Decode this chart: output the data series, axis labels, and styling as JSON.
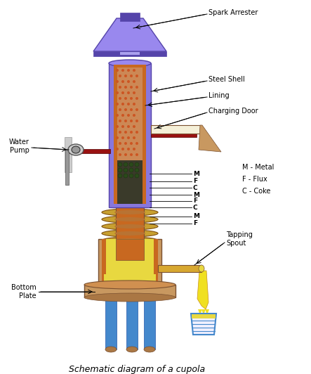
{
  "title": "Schematic diagram of a cupola",
  "bg_color": "#ffffff",
  "labels": {
    "spark_arrester": "Spark Arrester",
    "steel_shell": "Steel Shell",
    "lining": "Lining",
    "charging_door": "Charging Door",
    "water_pump": "Water\nPump",
    "M_metal": "M - Metal",
    "F_flux": "F - Flux",
    "C_coke": "C - Coke",
    "tapping_spout": "Tapping\nSpout",
    "bottom_plate": "Bottom\nPlate"
  },
  "colors": {
    "purple_shell": "#8877dd",
    "purple_mid": "#9988ee",
    "purple_light": "#aaa0ee",
    "purple_dark": "#5544aa",
    "orange_lining": "#c86820",
    "brick_bg": "#cc8855",
    "brick_dots": "#cc5522",
    "dark_material": "#3a3a2a",
    "green_dark": "#2a4a1a",
    "yellow_metal": "#e8d840",
    "yellow_bright": "#f0e020",
    "gold": "#c89020",
    "gold_light": "#d8a830",
    "blue_legs": "#4488cc",
    "blue_leg_light": "#66aaee",
    "dark_red": "#991111",
    "gray": "#999999",
    "gray_light": "#cccccc",
    "brown": "#aa7744",
    "brown_dark": "#7a5030",
    "brown_light": "#c89860",
    "copper": "#b87333",
    "copper_light": "#d09050",
    "black": "#000000",
    "white": "#ffffff",
    "cream": "#f5f0d8",
    "tuyere_gold": "#c8a030",
    "tuyere_dark": "#805010"
  }
}
